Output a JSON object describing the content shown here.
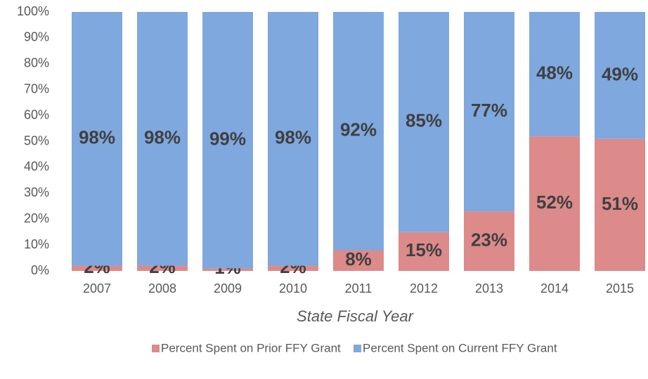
{
  "chart_data": {
    "type": "stacked_bar",
    "x_label": "State Fiscal Year",
    "categories": [
      "2007",
      "2008",
      "2009",
      "2010",
      "2011",
      "2012",
      "2013",
      "2014",
      "2015"
    ],
    "series": [
      {
        "name": "Percent Spent on Prior FFY Grant",
        "color": "#dc8a8a",
        "values": [
          2,
          2,
          1,
          2,
          8,
          15,
          23,
          52,
          51
        ],
        "value_labels": [
          "2%",
          "2%",
          "1%",
          "2%",
          "8%",
          "15%",
          "23%",
          "52%",
          "51%"
        ]
      },
      {
        "name": "Percent Spent on Current FFY Grant",
        "color": "#7ea8de",
        "values": [
          98,
          98,
          99,
          98,
          92,
          85,
          77,
          48,
          49
        ],
        "value_labels": [
          "98%",
          "98%",
          "99%",
          "98%",
          "92%",
          "85%",
          "77%",
          "48%",
          "49%"
        ]
      }
    ],
    "ylim": [
      0,
      100
    ],
    "yticks": [
      {
        "value": 0,
        "label": "0%"
      },
      {
        "value": 10,
        "label": "10%"
      },
      {
        "value": 20,
        "label": "20%"
      },
      {
        "value": 30,
        "label": "30%"
      },
      {
        "value": 40,
        "label": "40%"
      },
      {
        "value": 50,
        "label": "50%"
      },
      {
        "value": 60,
        "label": "60%"
      },
      {
        "value": 70,
        "label": "70%"
      },
      {
        "value": 80,
        "label": "80%"
      },
      {
        "value": 90,
        "label": "90%"
      },
      {
        "value": 100,
        "label": "100%"
      }
    ],
    "grid": false,
    "legend": "bottom"
  }
}
